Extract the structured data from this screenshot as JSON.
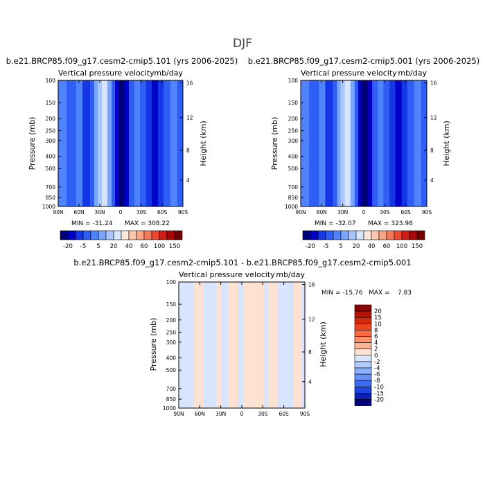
{
  "figure": {
    "title": "DJF"
  },
  "scale_top": {
    "labels": [
      "-20",
      "-5",
      "5",
      "20",
      "40",
      "60",
      "100",
      "150"
    ],
    "colors": [
      "#00007a",
      "#0000c8",
      "#1536e6",
      "#2f5ef5",
      "#4f82fb",
      "#7aa6fd",
      "#a9c7fd",
      "#d7e6fe",
      "#fde6da",
      "#fbc8ae",
      "#f8a584",
      "#f47b5a",
      "#eb4a31",
      "#d21c14",
      "#a80808",
      "#730000"
    ]
  },
  "scale_diff": {
    "labels": [
      "20",
      "15",
      "10",
      "8",
      "6",
      "4",
      "2",
      "0",
      "-2",
      "-4",
      "-6",
      "-8",
      "-10",
      "-15",
      "-20"
    ],
    "colors": [
      "#8b0000",
      "#b11508",
      "#d42b0f",
      "#ee4520",
      "#f96a45",
      "#fb906c",
      "#fcb497",
      "#fde2d2",
      "#d7e6fe",
      "#aecbfd",
      "#8bb2fc",
      "#6591f9",
      "#3d6cf3",
      "#1d45df",
      "#0a22b3",
      "#00007a"
    ]
  },
  "chart_data": [
    {
      "type": "heatmap",
      "title": "b.e21.BRCP85.f09_g17.cesm2-cmip5.101 (yrs 2006-2025)",
      "subtitle_left": "Vertical pressure velocity",
      "subtitle_right": "mb/day",
      "xlabel": "",
      "ylabel": "Pressure (mb)",
      "ylabel_right": "Height (km)",
      "x_ticks": [
        "90N",
        "60N",
        "30N",
        "0",
        "30S",
        "60S",
        "90S"
      ],
      "y_ticks": [
        "100",
        "150",
        "200",
        "250",
        "300",
        "400",
        "500",
        "700",
        "850",
        "1000"
      ],
      "y_right_ticks": [
        "16",
        "12",
        "8",
        "4"
      ],
      "xlim": [
        90,
        -90
      ],
      "ylim": [
        1000,
        100
      ],
      "y_scale": "log",
      "min": -31.24,
      "max": 308.22,
      "min_label": "MIN = -31.24",
      "max_label": "MAX = 308.22",
      "columns": [
        {
          "lat_from": 90,
          "lat_to": 78,
          "level": 4
        },
        {
          "lat_from": 78,
          "lat_to": 64,
          "level": 3
        },
        {
          "lat_from": 64,
          "lat_to": 55,
          "level": 4
        },
        {
          "lat_from": 55,
          "lat_to": 44,
          "level": 2
        },
        {
          "lat_from": 44,
          "lat_to": 38,
          "level": 3
        },
        {
          "lat_from": 38,
          "lat_to": 33,
          "level": 5
        },
        {
          "lat_from": 33,
          "lat_to": 27,
          "level": 6
        },
        {
          "lat_from": 27,
          "lat_to": 19,
          "level": 7
        },
        {
          "lat_from": 19,
          "lat_to": 13,
          "level": 5
        },
        {
          "lat_from": 13,
          "lat_to": 8,
          "level": 3
        },
        {
          "lat_from": 8,
          "lat_to": 3,
          "level": 1
        },
        {
          "lat_from": 3,
          "lat_to": -6,
          "level": 0
        },
        {
          "lat_from": -6,
          "lat_to": -12,
          "level": 1
        },
        {
          "lat_from": -12,
          "lat_to": -20,
          "level": 3
        },
        {
          "lat_from": -20,
          "lat_to": -28,
          "level": 4
        },
        {
          "lat_from": -28,
          "lat_to": -37,
          "level": 3
        },
        {
          "lat_from": -37,
          "lat_to": -45,
          "level": 2
        },
        {
          "lat_from": -45,
          "lat_to": -54,
          "level": 1
        },
        {
          "lat_from": -54,
          "lat_to": -62,
          "level": 2
        },
        {
          "lat_from": -62,
          "lat_to": -72,
          "level": 3
        },
        {
          "lat_from": -72,
          "lat_to": -82,
          "level": 4
        },
        {
          "lat_from": -82,
          "lat_to": -90,
          "level": 3
        }
      ]
    },
    {
      "type": "heatmap",
      "title": "b.e21.BRCP85.f09_g17.cesm2-cmip5.001 (yrs 2006-2025)",
      "subtitle_left": "Vertical pressure velocity",
      "subtitle_right": "mb/day",
      "xlabel": "",
      "ylabel": "Pressure (mb)",
      "ylabel_right": "Height (km)",
      "x_ticks": [
        "90N",
        "60N",
        "30N",
        "0",
        "30S",
        "60S",
        "90S"
      ],
      "y_ticks": [
        "100",
        "150",
        "200",
        "250",
        "300",
        "400",
        "500",
        "700",
        "850",
        "1000"
      ],
      "y_right_ticks": [
        "16",
        "12",
        "8",
        "4"
      ],
      "xlim": [
        90,
        -90
      ],
      "ylim": [
        1000,
        100
      ],
      "y_scale": "log",
      "min": -32.07,
      "max": 323.98,
      "min_label": "MIN = -32.07",
      "max_label": "MAX = 323.98",
      "columns": [
        {
          "lat_from": 90,
          "lat_to": 78,
          "level": 4
        },
        {
          "lat_from": 78,
          "lat_to": 64,
          "level": 3
        },
        {
          "lat_from": 64,
          "lat_to": 55,
          "level": 4
        },
        {
          "lat_from": 55,
          "lat_to": 44,
          "level": 2
        },
        {
          "lat_from": 44,
          "lat_to": 38,
          "level": 3
        },
        {
          "lat_from": 38,
          "lat_to": 33,
          "level": 5
        },
        {
          "lat_from": 33,
          "lat_to": 27,
          "level": 6
        },
        {
          "lat_from": 27,
          "lat_to": 19,
          "level": 7
        },
        {
          "lat_from": 19,
          "lat_to": 13,
          "level": 5
        },
        {
          "lat_from": 13,
          "lat_to": 8,
          "level": 3
        },
        {
          "lat_from": 8,
          "lat_to": 3,
          "level": 1
        },
        {
          "lat_from": 3,
          "lat_to": -6,
          "level": 0
        },
        {
          "lat_from": -6,
          "lat_to": -12,
          "level": 1
        },
        {
          "lat_from": -12,
          "lat_to": -20,
          "level": 3
        },
        {
          "lat_from": -20,
          "lat_to": -28,
          "level": 4
        },
        {
          "lat_from": -28,
          "lat_to": -37,
          "level": 3
        },
        {
          "lat_from": -37,
          "lat_to": -45,
          "level": 2
        },
        {
          "lat_from": -45,
          "lat_to": -54,
          "level": 1
        },
        {
          "lat_from": -54,
          "lat_to": -62,
          "level": 2
        },
        {
          "lat_from": -62,
          "lat_to": -72,
          "level": 3
        },
        {
          "lat_from": -72,
          "lat_to": -82,
          "level": 4
        },
        {
          "lat_from": -82,
          "lat_to": -90,
          "level": 3
        }
      ]
    },
    {
      "type": "heatmap",
      "title": "b.e21.BRCP85.f09_g17.cesm2-cmip5.101 - b.e21.BRCP85.f09_g17.cesm2-cmip5.001",
      "subtitle_left": "Vertical pressure velocity",
      "subtitle_right": "mb/day",
      "xlabel": "",
      "ylabel": "Pressure (mb)",
      "ylabel_right": "Height (km)",
      "x_ticks": [
        "90N",
        "60N",
        "30N",
        "0",
        "30S",
        "60S",
        "90S"
      ],
      "y_ticks": [
        "100",
        "150",
        "200",
        "250",
        "300",
        "400",
        "500",
        "700",
        "850",
        "1000"
      ],
      "y_right_ticks": [
        "16",
        "12",
        "8",
        "4"
      ],
      "xlim": [
        90,
        -90
      ],
      "ylim": [
        1000,
        100
      ],
      "y_scale": "log",
      "min": -15.76,
      "max": 7.83,
      "minmax_label": "MIN = -15.76   MAX =    7.83",
      "columns": [
        {
          "lat_from": 90,
          "lat_to": 87,
          "level": 8
        },
        {
          "lat_from": 87,
          "lat_to": 69,
          "level": 8
        },
        {
          "lat_from": 69,
          "lat_to": 55,
          "level": 7
        },
        {
          "lat_from": 55,
          "lat_to": 36,
          "level": 8
        },
        {
          "lat_from": 36,
          "lat_to": 29,
          "level": 7
        },
        {
          "lat_from": 29,
          "lat_to": 19,
          "level": 8
        },
        {
          "lat_from": 19,
          "lat_to": 6,
          "level": 7
        },
        {
          "lat_from": 6,
          "lat_to": -2,
          "level": 8
        },
        {
          "lat_from": -2,
          "lat_to": -32,
          "level": 7
        },
        {
          "lat_from": -32,
          "lat_to": -38,
          "level": 8
        },
        {
          "lat_from": -38,
          "lat_to": -51,
          "level": 7
        },
        {
          "lat_from": -51,
          "lat_to": -74,
          "level": 8
        },
        {
          "lat_from": -74,
          "lat_to": -86,
          "level": 7
        },
        {
          "lat_from": -86,
          "lat_to": -90,
          "level": 8
        }
      ]
    }
  ]
}
